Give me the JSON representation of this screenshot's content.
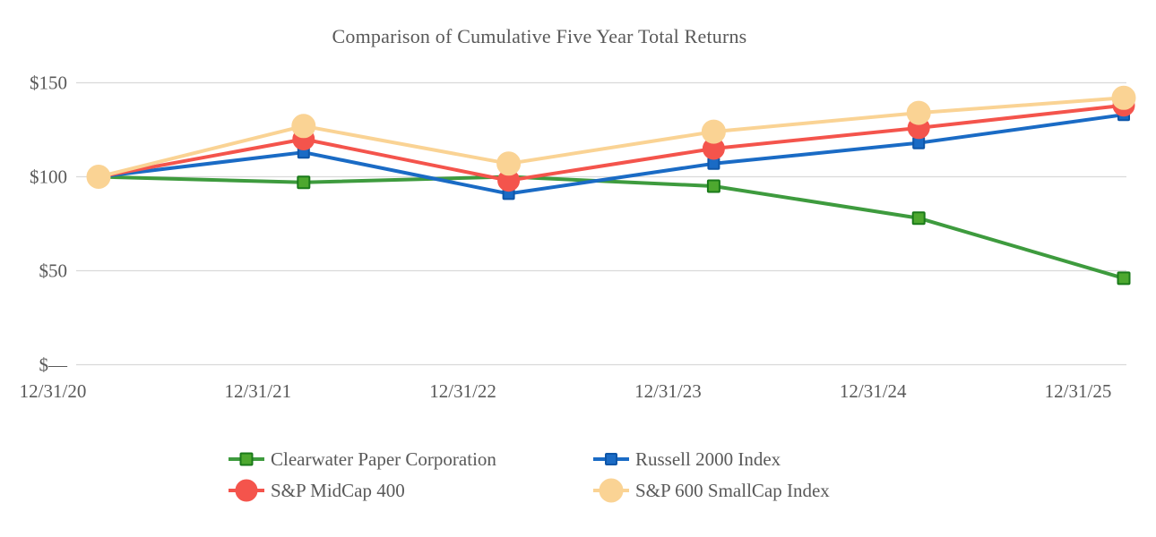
{
  "title": "Comparison of Cumulative Five Year Total Returns",
  "chart_data": {
    "type": "line",
    "title": "Comparison of Cumulative Five Year Total Returns",
    "categories": [
      "12/31/20",
      "12/31/21",
      "12/31/22",
      "12/31/23",
      "12/31/24",
      "12/31/25"
    ],
    "series": [
      {
        "name": "Clearwater Paper Corporation",
        "color": "#3E9B3E",
        "marker": "square",
        "marker_size": 13,
        "marker_fill": "#4DA82F",
        "marker_stroke": "#1A7A1A",
        "values": [
          100,
          97,
          100,
          95,
          78,
          46
        ]
      },
      {
        "name": "Russell 2000 Index",
        "color": "#1A6BC5",
        "marker": "square",
        "marker_size": 12,
        "marker_fill": "#1A6BC5",
        "marker_stroke": "#0E56A8",
        "values": [
          100,
          113,
          91,
          107,
          118,
          133
        ]
      },
      {
        "name": "S&P MidCap 400",
        "color": "#F4544C",
        "marker": "circle",
        "marker_size": 24,
        "marker_fill": "#F4544C",
        "marker_stroke": "#F4544C",
        "values": [
          100,
          120,
          98,
          115,
          126,
          138
        ]
      },
      {
        "name": "S&P 600 SmallCap Index",
        "color": "#FAD394",
        "marker": "circle",
        "marker_size": 26,
        "marker_fill": "#FAD394",
        "marker_stroke": "#FAD394",
        "values": [
          100,
          127,
          107,
          124,
          134,
          142
        ]
      }
    ],
    "y_axis": {
      "ticks": [
        {
          "label": "$150",
          "value": 150
        },
        {
          "label": "$100",
          "value": 100
        },
        {
          "label": "$50",
          "value": 50
        },
        {
          "label": "$—",
          "value": 0
        }
      ],
      "range": [
        0,
        150
      ],
      "grid": true
    },
    "legend_position": "bottom",
    "text_color": "#595959",
    "grid_color": "#D9D9D9"
  }
}
